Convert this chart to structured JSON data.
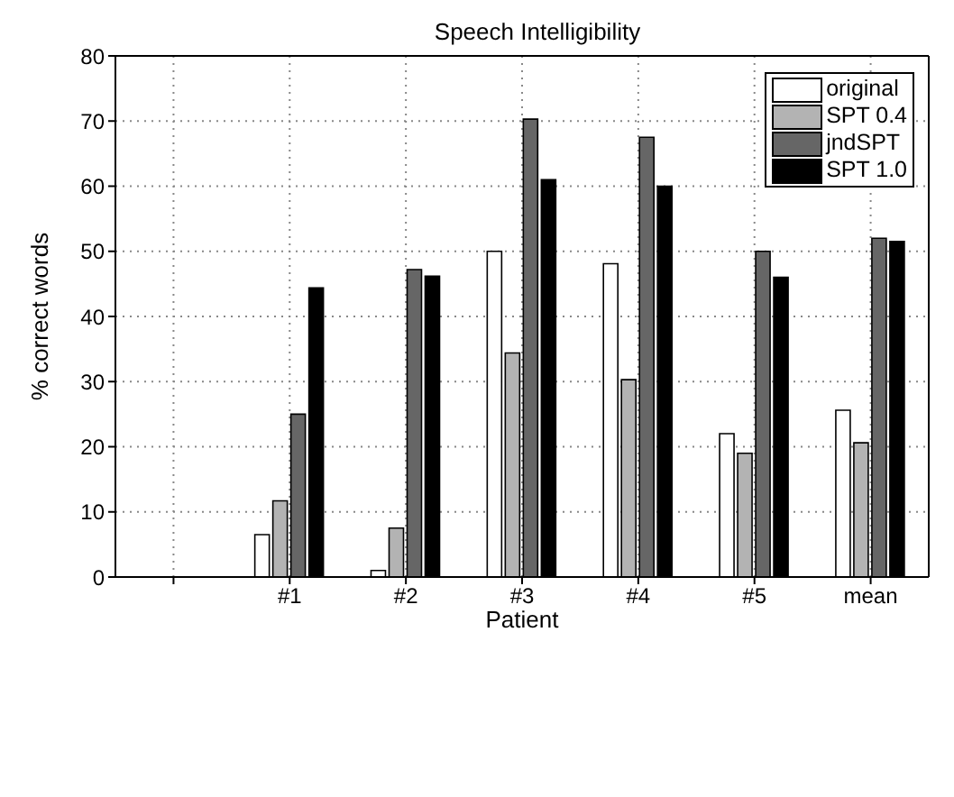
{
  "chart_data": {
    "type": "bar",
    "title": "Speech Intelligibility",
    "xlabel": "Patient",
    "ylabel": "% correct words",
    "categories": [
      null,
      "#1",
      "#2",
      "#3",
      "#4",
      "#5",
      "mean"
    ],
    "series": [
      {
        "name": "original",
        "color": "#ffffff",
        "values": [
          null,
          6.5,
          1,
          50,
          48.1,
          22,
          25.6
        ]
      },
      {
        "name": "SPT 0.4",
        "color": "#b3b3b3",
        "values": [
          null,
          11.7,
          7.5,
          34.4,
          30.3,
          19,
          20.6
        ]
      },
      {
        "name": "jndSPT",
        "color": "#666666",
        "values": [
          null,
          25,
          47.2,
          70.3,
          67.5,
          50,
          52
        ]
      },
      {
        "name": "SPT 1.0",
        "color": "#000000",
        "values": [
          null,
          44.4,
          46.2,
          61,
          60,
          46,
          51.5
        ]
      }
    ],
    "ylim": [
      0,
      80
    ],
    "yticks": [
      0,
      10,
      20,
      30,
      40,
      50,
      60,
      70,
      80
    ],
    "grid": true,
    "legend": "top right"
  }
}
